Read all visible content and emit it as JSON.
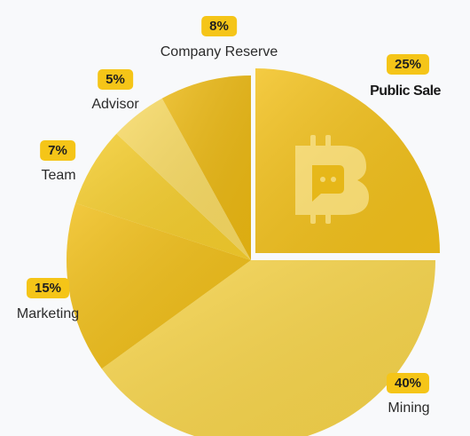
{
  "chart_data": {
    "type": "pie",
    "title": "",
    "slices": [
      {
        "label": "Public Sale",
        "value": 25,
        "value_label": "25%",
        "color": "#f2c01a",
        "exploded": true,
        "icon": "bitcoin-chat-icon"
      },
      {
        "label": "Mining",
        "value": 40,
        "value_label": "40%",
        "color": "#f7d44a"
      },
      {
        "label": "Marketing",
        "value": 15,
        "value_label": "15%",
        "color": "#f0be17"
      },
      {
        "label": "Team",
        "value": 7,
        "value_label": "7%",
        "color": "#f5cd2c"
      },
      {
        "label": "Advisor",
        "value": 5,
        "value_label": "5%",
        "color": "#f8da62"
      },
      {
        "label": "Company Reserve",
        "value": 8,
        "value_label": "8%",
        "color": "#ebb812"
      }
    ],
    "legend": "none",
    "colors": {
      "badge": "#f5c518",
      "background": "#f8f9fb"
    }
  }
}
